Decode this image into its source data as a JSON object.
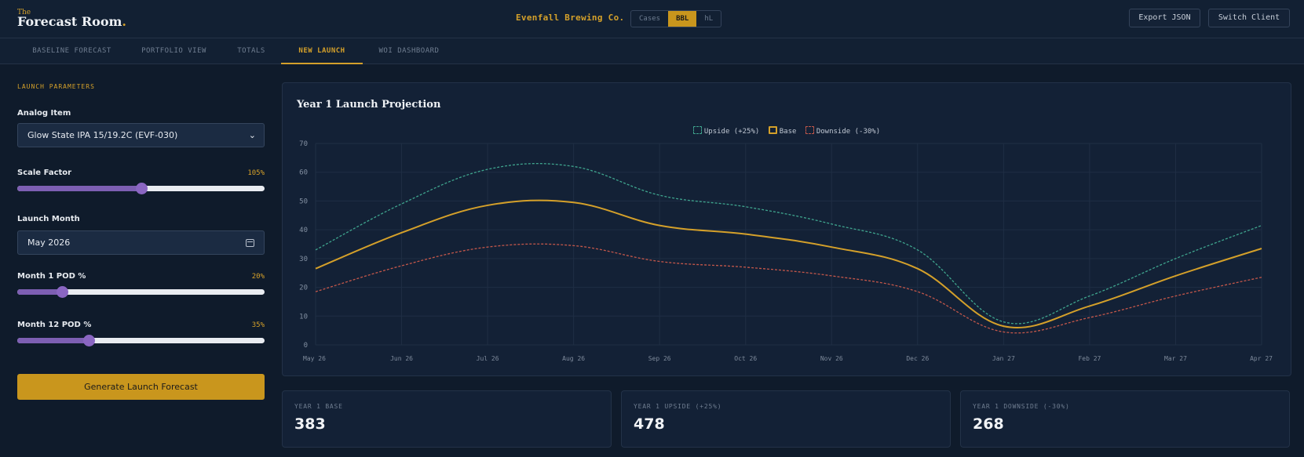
{
  "header": {
    "logo_the": "The",
    "logo_main": "Forecast Room",
    "logo_dot": ".",
    "client_name": "Evenfall Brewing Co.",
    "units": [
      {
        "label": "Cases",
        "active": false
      },
      {
        "label": "BBL",
        "active": true
      },
      {
        "label": "hL",
        "active": false
      }
    ],
    "export_label": "Export JSON",
    "switch_label": "Switch Client"
  },
  "tabs": [
    {
      "label": "BASELINE FORECAST",
      "active": false
    },
    {
      "label": "PORTFOLIO VIEW",
      "active": false
    },
    {
      "label": "TOTALS",
      "active": false
    },
    {
      "label": "NEW LAUNCH",
      "active": true
    },
    {
      "label": "WOI DASHBOARD",
      "active": false
    }
  ],
  "sidebar": {
    "section_title": "LAUNCH PARAMETERS",
    "analog_label": "Analog Item",
    "analog_value": "Glow State IPA 15/19.2C (EVF-030)",
    "scale_label": "Scale Factor",
    "scale_value_text": "105%",
    "scale_level": 0.5,
    "launch_month_label": "Launch Month",
    "launch_month_value": "May 2026",
    "m1_label": "Month 1 POD %",
    "m1_value_text": "20%",
    "m1_level": 0.18,
    "m12_label": "Month 12 POD %",
    "m12_value_text": "35%",
    "m12_level": 0.29,
    "generate_label": "Generate Launch Forecast"
  },
  "chart_data": {
    "type": "line",
    "title": "Year 1 Launch Projection",
    "categories": [
      "May 26",
      "Jun 26",
      "Jul 26",
      "Aug 26",
      "Sep 26",
      "Oct 26",
      "Nov 26",
      "Dec 26",
      "Jan 27",
      "Feb 27",
      "Mar 27",
      "Apr 27"
    ],
    "series": [
      {
        "name": "Upside (+25%)",
        "color": "#3fa58e",
        "dashed": true,
        "values": [
          33,
          49,
          61,
          62,
          52,
          48,
          42,
          33,
          8,
          17,
          30,
          41.5
        ]
      },
      {
        "name": "Base",
        "color": "#d4a02a",
        "dashed": false,
        "values": [
          26.5,
          39,
          48.5,
          49.5,
          41.5,
          38.5,
          34,
          26.5,
          6.5,
          13.5,
          24,
          33.5
        ]
      },
      {
        "name": "Downside (-30%)",
        "color": "#c4574a",
        "dashed": true,
        "values": [
          18.5,
          27.5,
          34,
          34.5,
          29,
          27,
          24,
          18.5,
          4.5,
          9.5,
          17,
          23.5
        ]
      }
    ],
    "ylim": [
      0,
      70
    ],
    "yticks": [
      0,
      10,
      20,
      30,
      40,
      50,
      60,
      70
    ],
    "grid": true,
    "legend_position": "top-center"
  },
  "stats": [
    {
      "label": "YEAR 1 BASE",
      "value": "383"
    },
    {
      "label": "YEAR 1 UPSIDE (+25%)",
      "value": "478"
    },
    {
      "label": "YEAR 1 DOWNSIDE (-30%)",
      "value": "268"
    }
  ]
}
